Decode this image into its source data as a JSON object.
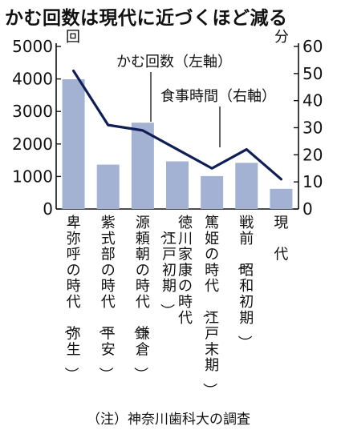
{
  "title": "かむ回数は現代に近づくほど減る",
  "note": "（注）神奈川歯科大の調査",
  "chart_data": {
    "type": "bar",
    "categories": [
      "卑弥呼の時代（弥生）",
      "紫式部の時代（平安）",
      "源頼朝の時代（鎌倉）",
      "徳川家康の時代（江戸初期）",
      "篤姫の時代（江戸末期）",
      "戦前（昭和初期）",
      "現代"
    ],
    "category_lines": [
      [
        "卑弥呼の時代（弥生）"
      ],
      [
        "紫式部の時代（平安）"
      ],
      [
        "源頼朝の時代（鎌倉）"
      ],
      [
        "徳川家康の時代",
        "（江戸初期）"
      ],
      [
        "篤姫の時代（江戸末期）"
      ],
      [
        "戦前（昭和初期）"
      ],
      [
        "現　代"
      ]
    ],
    "series": [
      {
        "name": "かむ回数（左軸）",
        "type": "bar",
        "axis": "left",
        "values": [
          3990,
          1365,
          2654,
          1465,
          1012,
          1420,
          620
        ]
      },
      {
        "name": "食事時間（右軸）",
        "type": "line",
        "axis": "right",
        "values": [
          51,
          31,
          29,
          22,
          15,
          22,
          11
        ]
      }
    ],
    "y_left": {
      "unit": "回",
      "min": 0,
      "max": 5000,
      "ticks": [
        "0",
        "1000",
        "2000",
        "3000",
        "4000",
        "5000"
      ]
    },
    "y_right": {
      "unit": "分",
      "min": 0,
      "max": 60,
      "ticks": [
        "0",
        "10",
        "20",
        "30",
        "40",
        "50",
        "60"
      ]
    },
    "grid": false,
    "colors": {
      "bar": "#a3b1d2",
      "line": "#0f1e55",
      "text": "#111111"
    }
  }
}
